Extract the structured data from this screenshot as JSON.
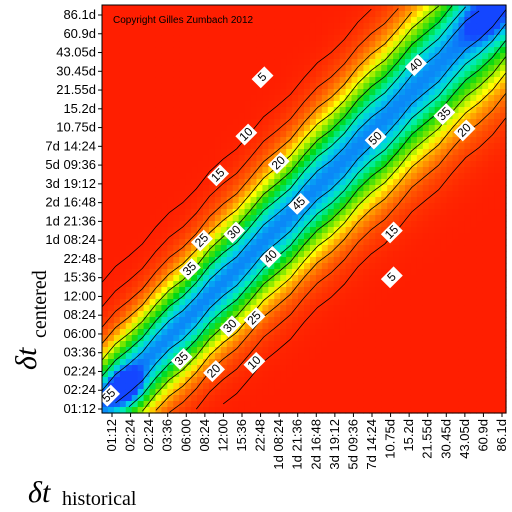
{
  "chart_data": {
    "type": "heatmap",
    "copyright": "Copyright Gilles Zumbach 2012",
    "xlabel": {
      "main": "δt",
      "sub": "historical"
    },
    "ylabel": {
      "main": "δt",
      "sub": "centered"
    },
    "x_ticks": [
      "01:12",
      "02:24",
      "02:24",
      "03:36",
      "06:00",
      "08:24",
      "12:00",
      "15:36",
      "22:48",
      "1d 08:24",
      "1d 21:36",
      "2d 16:48",
      "3d 19:12",
      "5d 09:36",
      "7d 14:24",
      "10.75d",
      "15.2d",
      "21.55d",
      "30.45d",
      "43.05d",
      "60.9d",
      "86.1d"
    ],
    "y_ticks": [
      "86.1d",
      "60.9d",
      "43.05d",
      "30.45d",
      "21.55d",
      "15.2d",
      "10.75d",
      "7d 14:24",
      "5d 09:36",
      "3d 19:12",
      "2d 16:48",
      "1d 21:36",
      "1d 08:24",
      "22:48",
      "15:36",
      "12:00",
      "08:24",
      "06:00",
      "03:36",
      "02:24",
      "02:24",
      "01:12"
    ],
    "contour_levels": [
      5,
      10,
      15,
      20,
      25,
      30,
      35,
      40,
      45,
      50,
      55
    ],
    "color_scale": {
      "low": "#ff2a00",
      "mid_low": "#ff9900",
      "mid": "#ffff00",
      "mid_high": "#00e000",
      "high": "#00ffd0",
      "top": "#1040ff"
    },
    "contour_labels": [
      "5",
      "10",
      "15",
      "20",
      "25",
      "30",
      "35",
      "40",
      "45",
      "50",
      "55",
      "55"
    ]
  }
}
